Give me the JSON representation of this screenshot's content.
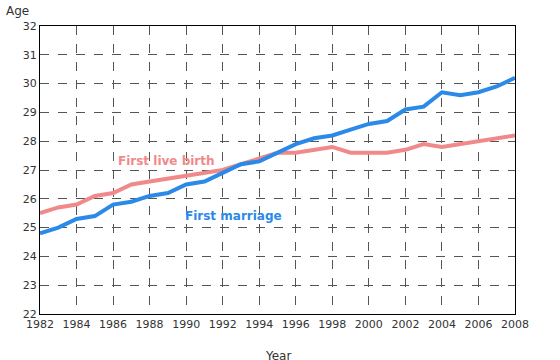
{
  "chart_data": {
    "type": "line",
    "x_label": "Year",
    "y_label": "Age",
    "x": [
      1982,
      1983,
      1984,
      1985,
      1986,
      1987,
      1988,
      1989,
      1990,
      1991,
      1992,
      1993,
      1994,
      1995,
      1996,
      1997,
      1998,
      1999,
      2000,
      2001,
      2002,
      2003,
      2004,
      2005,
      2006,
      2007,
      2008
    ],
    "series": [
      {
        "name": "First live birth",
        "color": "#f08a8a",
        "values": [
          25.5,
          25.7,
          25.8,
          26.1,
          26.2,
          26.5,
          26.6,
          26.7,
          26.8,
          26.9,
          27.0,
          27.2,
          27.4,
          27.6,
          27.6,
          27.7,
          27.8,
          27.6,
          27.6,
          27.6,
          27.7,
          27.9,
          27.8,
          27.9,
          28.0,
          28.1,
          28.2
        ]
      },
      {
        "name": "First marriage",
        "color": "#2b8ae8",
        "values": [
          24.8,
          25.0,
          25.3,
          25.4,
          25.8,
          25.9,
          26.1,
          26.2,
          26.5,
          26.6,
          26.9,
          27.2,
          27.3,
          27.6,
          27.9,
          28.1,
          28.2,
          28.4,
          28.6,
          28.7,
          29.1,
          29.2,
          29.7,
          29.6,
          29.7,
          29.9,
          30.2
        ]
      }
    ],
    "xlim": [
      1982,
      2008
    ],
    "xticks": [
      1982,
      1984,
      1986,
      1988,
      1990,
      1992,
      1994,
      1996,
      1998,
      2000,
      2002,
      2004,
      2006,
      2008
    ],
    "ylim": [
      22,
      32
    ],
    "yticks": [
      22,
      23,
      24,
      25,
      26,
      27,
      28,
      29,
      30,
      31,
      32
    ],
    "grid": true,
    "line_style": "solid"
  }
}
